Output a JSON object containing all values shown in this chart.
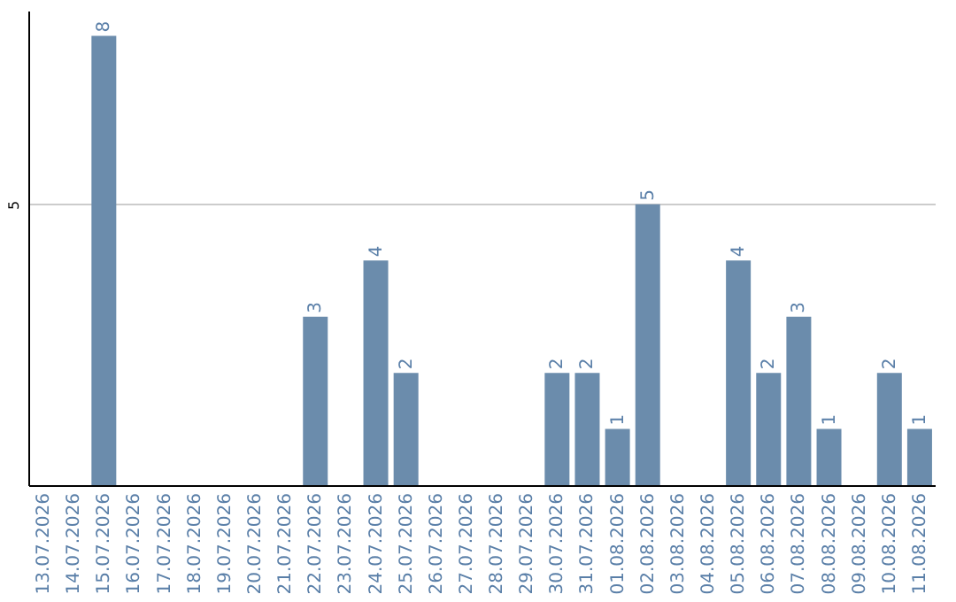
{
  "chart_data": {
    "type": "bar",
    "categories": [
      "13.07.2026",
      "14.07.2026",
      "15.07.2026",
      "16.07.2026",
      "17.07.2026",
      "18.07.2026",
      "19.07.2026",
      "20.07.2026",
      "21.07.2026",
      "22.07.2026",
      "23.07.2026",
      "24.07.2026",
      "25.07.2026",
      "26.07.2026",
      "27.07.2026",
      "28.07.2026",
      "29.07.2026",
      "30.07.2026",
      "31.07.2026",
      "01.08.2026",
      "02.08.2026",
      "03.08.2026",
      "04.08.2026",
      "05.08.2026",
      "06.08.2026",
      "07.08.2026",
      "08.08.2026",
      "09.08.2026",
      "10.08.2026",
      "11.08.2026"
    ],
    "values": [
      0,
      0,
      8,
      0,
      0,
      0,
      0,
      0,
      0,
      3,
      0,
      4,
      2,
      0,
      0,
      0,
      0,
      2,
      2,
      1,
      5,
      0,
      0,
      4,
      2,
      3,
      1,
      0,
      2,
      1
    ],
    "value_labels": [
      null,
      null,
      "8",
      null,
      null,
      null,
      null,
      null,
      null,
      "3",
      null,
      "4",
      "2",
      null,
      null,
      null,
      null,
      "2",
      "2",
      "1",
      "5",
      null,
      null,
      "4",
      "2",
      "3",
      "1",
      null,
      "2",
      "1"
    ],
    "color": "#6b8cac",
    "ylim": [
      0,
      8.45
    ],
    "yticks": [
      5
    ],
    "grid": "y"
  }
}
